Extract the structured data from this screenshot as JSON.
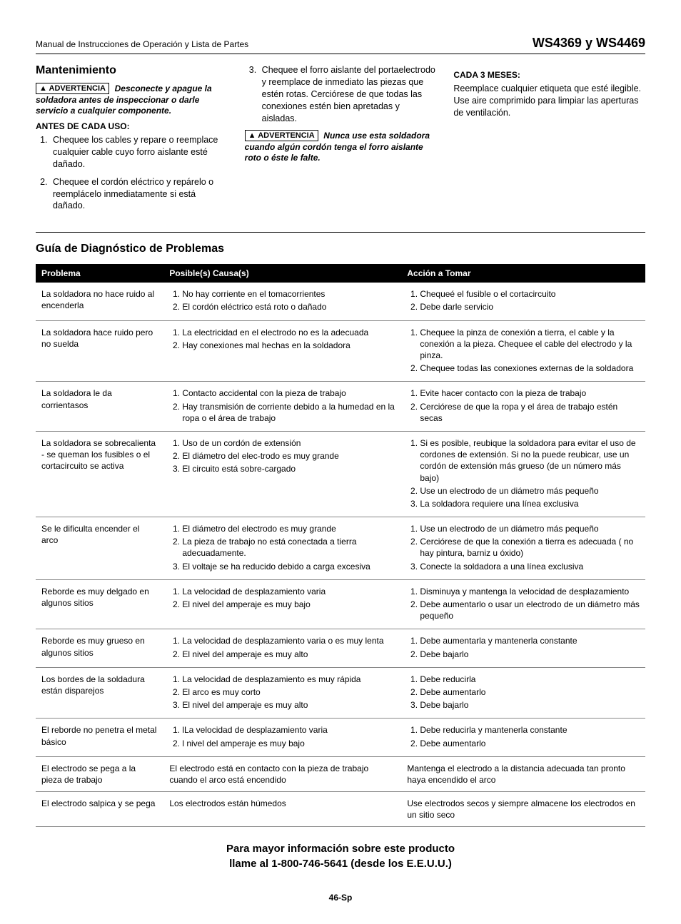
{
  "header": {
    "manual_title": "Manual de Instrucciones de Operación y Lista de Partes",
    "model": "WS4369 y WS4469"
  },
  "maintenance": {
    "heading": "Mantenimiento",
    "warning_label": "ADVERTENCIA",
    "warning1": "Desconecte y apague la soldadora antes de inspeccionar o darle servicio a cualquier componente.",
    "before_use_heading": "ANTES DE CADA USO:",
    "before_use_items": [
      "Chequee los cables y repare o reemplace cualquier cable cuyo forro aislante esté dañado.",
      "Chequee el cordón eléctrico y repárelo o reemplácelo inmediatamente si está dañado."
    ],
    "col2_item3": "Chequee el forro aislante del portaelectrodo y reemplace de inmediato las piezas que estén rotas. Cerciórese de que todas las conexiones estén bien apretadas y aisladas.",
    "warning2": "Nunca use esta soldadora cuando algún cordón tenga el forro aislante roto o éste le falte.",
    "every3_heading": "CADA 3 MESES:",
    "every3_text": "Reemplace cualquier etiqueta que esté ilegible. Use aire comprimido para limpiar las aperturas de ventilación."
  },
  "troubleshoot": {
    "heading": "Guía de Diagnóstico de Problemas",
    "columns": [
      "Problema",
      "Posible(s) Causa(s)",
      "Acción a Tomar"
    ],
    "rows": [
      {
        "problem": "La soldadora no hace ruido al encenderla",
        "causes": [
          "No hay corriente en el tomacorrientes",
          "El cordón eléctrico está roto o dañado"
        ],
        "actions": [
          "Chequeé el fusible o el cortacircuito",
          "Debe darle servicio"
        ]
      },
      {
        "problem": "La soldadora hace ruido pero no suelda",
        "causes": [
          "La electricidad en el electrodo no es la adecuada",
          "Hay conexiones mal hechas en la soldadora"
        ],
        "actions": [
          "Chequee la pinza de conexión a tierra, el cable y la conexión a la pieza. Chequee el cable del electrodo y la pinza.",
          "Chequee todas las conexiones externas de la soldadora"
        ]
      },
      {
        "problem": "La soldadora le da corrientasos",
        "causes": [
          "Contacto accidental con la pieza de trabajo",
          "Hay transmisión de corriente debido a la humedad en la ropa o el área de trabajo"
        ],
        "actions": [
          "Evite hacer contacto con la pieza de trabajo",
          "Cerciórese de que la ropa y el área de trabajo estén secas"
        ]
      },
      {
        "problem": "La soldadora se sobrecalienta - se queman los fusibles o el cortacircuito se activa",
        "causes": [
          "Uso de un cordón de extensión",
          "El diámetro del elec-trodo es muy grande",
          "El circuito está sobre-cargado"
        ],
        "actions": [
          "Si es posible, reubique la soldadora para evitar el uso de cordones de extensión. Si no la puede reubicar, use un cordón de extensión más grueso (de un número más bajo)",
          "Use un electrodo de un diámetro más pequeño",
          "La soldadora requiere una línea exclusiva"
        ]
      },
      {
        "problem": "Se le dificulta encender el arco",
        "causes": [
          "El diámetro del electrodo es muy grande",
          "La pieza de trabajo no está conectada a tierra adecuadamente.",
          "El voltaje se ha reducido debido a carga excesiva"
        ],
        "actions": [
          "Use un electrodo de un diámetro más pequeño",
          "Cerciórese de que la conexión a tierra es adecuada ( no hay pintura, barniz u óxido)",
          "Conecte la soldadora a una línea exclusiva"
        ]
      },
      {
        "problem": "Reborde es muy delgado en algunos sitios",
        "causes": [
          "La velocidad de desplazamiento varia",
          "El nivel del amperaje es muy bajo"
        ],
        "actions": [
          "Disminuya y mantenga la velocidad de desplazamiento",
          "Debe aumentarlo o usar un electrodo de un diámetro más pequeño"
        ]
      },
      {
        "problem": "Reborde es muy grueso en algunos sitios",
        "causes": [
          "La velocidad de desplazamiento varia o es muy lenta",
          "El nivel del amperaje es muy alto"
        ],
        "actions": [
          "Debe aumentarla y mantenerla constante",
          "Debe bajarlo"
        ]
      },
      {
        "problem": "Los bordes de la soldadura están disparejos",
        "causes": [
          "La velocidad de desplazamiento es muy rápida",
          "El arco es muy corto",
          "El nivel del amperaje es muy alto"
        ],
        "actions": [
          "Debe reducirla",
          "Debe aumentarlo",
          "Debe bajarlo"
        ]
      },
      {
        "problem": "El reborde no penetra el metal básico",
        "causes": [
          "lLa velocidad de desplazamiento varia",
          "l nivel del amperaje es muy bajo"
        ],
        "actions": [
          "Debe reducirla y mantenerla constante",
          "Debe aumentarlo"
        ]
      },
      {
        "problem": "El electrodo se pega a la pieza de trabajo",
        "cause_single": "El electrodo está en contacto con la pieza de trabajo cuando el arco está encendido",
        "action_single": "Mantenga el electrodo a la distancia adecuada tan pronto haya encendido el arco"
      },
      {
        "problem": "El electrodo salpica y se pega",
        "cause_single": "Los electrodos están húmedos",
        "action_single": "Use electrodos secos y siempre almacene los electrodos en un sitio seco"
      }
    ]
  },
  "footer": {
    "line1": "Para mayor información sobre este producto",
    "line2": "llame al 1-800-746-5641 (desde los E.E.U.U.)",
    "page": "46-Sp"
  }
}
